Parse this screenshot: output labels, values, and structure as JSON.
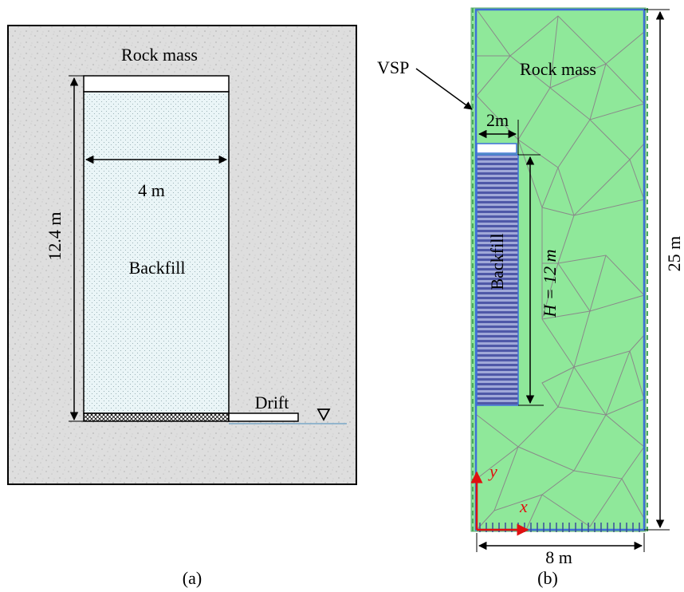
{
  "panel_a": {
    "rock_mass_label": "Rock mass",
    "height_label": "12.4 m",
    "width_label": "4 m",
    "backfill_label": "Backfill",
    "drift_label": "Drift",
    "caption": "(a)",
    "colors": {
      "rock": "#dcdcdc",
      "backfill": "#e9f4f6",
      "water_line": "#7aa7c7"
    }
  },
  "panel_b": {
    "vsp_label": "VSP",
    "rock_mass_label": "Rock mass",
    "stope_width_label": "2m",
    "backfill_label": "Backfill",
    "stope_height_label": "H = 12 m",
    "domain_height_label": "25 m",
    "domain_width_label": "8 m",
    "axis_x_label": "x",
    "axis_y_label": "y",
    "caption": "(b)",
    "colors": {
      "mesh_fill": "#8fe89a",
      "mesh_line": "#8a8a8a",
      "boundary": "#3f6fd8",
      "backfill": "#5a64b4",
      "axis": "#e01010"
    }
  }
}
